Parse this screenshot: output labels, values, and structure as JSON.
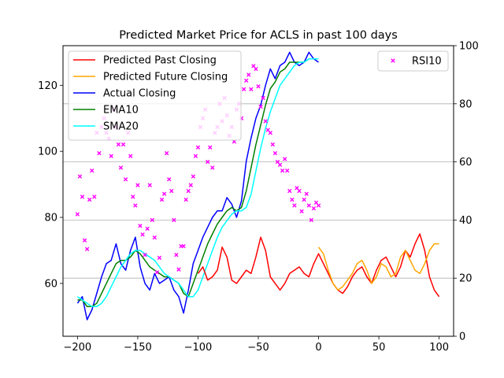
{
  "chart_data": {
    "type": "line",
    "title": "Predicted Market Price for ACLS in past 100 days",
    "xlabel": "",
    "ylabel": "",
    "xlim": [
      -212,
      112
    ],
    "ylim": [
      44,
      132
    ],
    "y2lim": [
      0,
      100
    ],
    "xticks": [
      -200,
      -150,
      -100,
      -50,
      0,
      50,
      100
    ],
    "yticks": [
      60,
      80,
      100,
      120
    ],
    "y2ticks": [
      0,
      20,
      40,
      60,
      80,
      100
    ],
    "grid": "right-axis horizontal lines",
    "colors": {
      "predicted_past": "#ff0000",
      "predicted_future": "#ffa500",
      "actual": "#0000ff",
      "ema": "#008000",
      "sma": "#00ffff",
      "rsi": "#ff00ff"
    },
    "legend_left": {
      "placement": "upper-left",
      "entries": [
        {
          "key": "predicted_past",
          "label": "Predicted Past Closing"
        },
        {
          "key": "predicted_future",
          "label": "Predicted Future Closing"
        },
        {
          "key": "actual",
          "label": "Actual Closing"
        },
        {
          "key": "ema",
          "label": "EMA10"
        },
        {
          "key": "sma",
          "label": "SMA20"
        }
      ]
    },
    "legend_right": {
      "placement": "upper-right",
      "entries": [
        {
          "key": "rsi",
          "label": "RSI10"
        }
      ]
    },
    "series": [
      {
        "key": "actual",
        "name": "Actual Closing",
        "axis": "left",
        "x": [
          -200,
          -196,
          -192,
          -188,
          -184,
          -180,
          -176,
          -172,
          -168,
          -164,
          -160,
          -156,
          -152,
          -148,
          -144,
          -140,
          -136,
          -132,
          -128,
          -124,
          -120,
          -116,
          -112,
          -108,
          -104,
          -100,
          -96,
          -92,
          -88,
          -84,
          -80,
          -76,
          -72,
          -68,
          -64,
          -60,
          -56,
          -52,
          -48,
          -44,
          -40,
          -36,
          -32,
          -28,
          -24,
          -20,
          -16,
          -12,
          -8,
          -4,
          0
        ],
        "values": [
          54,
          56,
          49,
          52,
          57,
          62,
          66,
          67,
          72,
          66,
          64,
          70,
          74,
          65,
          60,
          58,
          63,
          60,
          61,
          62,
          58,
          56,
          51,
          58,
          66,
          70,
          74,
          77,
          80,
          82,
          82,
          86,
          84,
          80,
          85,
          97,
          104,
          110,
          114,
          120,
          125,
          122,
          126,
          127,
          130,
          127,
          126,
          127,
          130,
          128,
          127
        ]
      },
      {
        "key": "ema",
        "name": "EMA10",
        "axis": "left",
        "x": [
          -200,
          -196,
          -192,
          -188,
          -184,
          -180,
          -176,
          -172,
          -168,
          -164,
          -160,
          -156,
          -152,
          -148,
          -144,
          -140,
          -136,
          -132,
          -128,
          -124,
          -120,
          -116,
          -112,
          -108,
          -104,
          -100,
          -96,
          -92,
          -88,
          -84,
          -80,
          -76,
          -72,
          -68,
          -64,
          -60,
          -56,
          -52,
          -48,
          -44,
          -40,
          -36,
          -32,
          -28,
          -24,
          -20,
          -16,
          -12,
          -8,
          -4,
          0
        ],
        "values": [
          55,
          55,
          53,
          53,
          54,
          57,
          60,
          63,
          66,
          67,
          67,
          68,
          70,
          69,
          67,
          65,
          64,
          63,
          62,
          62,
          61,
          60,
          57,
          56,
          60,
          64,
          68,
          72,
          75,
          78,
          80,
          82,
          83,
          82,
          83,
          88,
          95,
          102,
          108,
          114,
          119,
          121,
          124,
          125,
          127,
          127,
          127,
          127,
          128,
          128,
          128
        ]
      },
      {
        "key": "sma",
        "name": "SMA20",
        "axis": "left",
        "x": [
          -200,
          -196,
          -192,
          -188,
          -184,
          -180,
          -176,
          -172,
          -168,
          -164,
          -160,
          -156,
          -152,
          -148,
          -144,
          -140,
          -136,
          -132,
          -128,
          -124,
          -120,
          -116,
          -112,
          -108,
          -104,
          -100,
          -96,
          -92,
          -88,
          -84,
          -80,
          -76,
          -72,
          -68,
          -64,
          -60,
          -56,
          -52,
          -48,
          -44,
          -40,
          -36,
          -32,
          -28,
          -24,
          -20,
          -16,
          -12,
          -8,
          -4,
          0
        ],
        "values": [
          56,
          55,
          54,
          53,
          53,
          54,
          56,
          59,
          62,
          65,
          67,
          69,
          70,
          70,
          69,
          68,
          67,
          65,
          63,
          62,
          61,
          60,
          58,
          56,
          56,
          58,
          62,
          66,
          70,
          74,
          77,
          79,
          81,
          82,
          82,
          83,
          87,
          94,
          101,
          107,
          112,
          116,
          120,
          122,
          124,
          126,
          127,
          127,
          128,
          128,
          128
        ]
      },
      {
        "key": "predicted_past",
        "name": "Predicted Past Closing",
        "axis": "left",
        "x": [
          -100,
          -96,
          -92,
          -88,
          -84,
          -80,
          -76,
          -72,
          -68,
          -64,
          -60,
          -56,
          -52,
          -48,
          -44,
          -40,
          -36,
          -32,
          -28,
          -24,
          -20,
          -16,
          -12,
          -8,
          -4,
          0,
          4,
          8,
          12,
          16,
          20,
          24,
          28,
          32,
          36,
          40,
          44,
          48,
          52,
          56,
          60,
          64,
          68,
          72,
          76,
          80,
          84,
          88,
          92,
          96,
          100
        ],
        "values": [
          63,
          65,
          61,
          62,
          64,
          71,
          68,
          61,
          60,
          62,
          64,
          63,
          68,
          74,
          70,
          62,
          60,
          58,
          60,
          63,
          64,
          65,
          63,
          62,
          66,
          69,
          66,
          63,
          60,
          58,
          57,
          59,
          62,
          64,
          65,
          62,
          60,
          64,
          67,
          68,
          65,
          62,
          65,
          70,
          68,
          72,
          75,
          70,
          62,
          58,
          56
        ]
      },
      {
        "key": "predicted_future",
        "name": "Predicted Future Closing",
        "axis": "left",
        "x": [
          0,
          4,
          8,
          12,
          16,
          20,
          24,
          28,
          32,
          36,
          40,
          44,
          48,
          52,
          56,
          60,
          64,
          68,
          72,
          76,
          80,
          84,
          88,
          92,
          96,
          100
        ],
        "values": [
          71,
          69,
          64,
          60,
          58,
          59,
          61,
          63,
          66,
          67,
          64,
          60,
          62,
          66,
          65,
          62,
          63,
          68,
          70,
          67,
          64,
          63,
          66,
          70,
          72,
          72
        ]
      },
      {
        "key": "rsi",
        "name": "RSI10",
        "axis": "right",
        "x": [
          -200,
          -198,
          -196,
          -194,
          -192,
          -190,
          -188,
          -186,
          -184,
          -182,
          -180,
          -178,
          -176,
          -174,
          -172,
          -170,
          -168,
          -166,
          -164,
          -162,
          -160,
          -158,
          -156,
          -154,
          -152,
          -150,
          -148,
          -146,
          -144,
          -142,
          -140,
          -138,
          -136,
          -134,
          -132,
          -130,
          -128,
          -126,
          -124,
          -122,
          -120,
          -118,
          -116,
          -114,
          -112,
          -110,
          -108,
          -106,
          -104,
          -102,
          -100,
          -98,
          -96,
          -94,
          -92,
          -90,
          -88,
          -86,
          -84,
          -82,
          -80,
          -78,
          -76,
          -74,
          -72,
          -70,
          -68,
          -66,
          -64,
          -62,
          -60,
          -58,
          -56,
          -54,
          -52,
          -50,
          -48,
          -46,
          -44,
          -42,
          -40,
          -38,
          -36,
          -34,
          -32,
          -30,
          -28,
          -26,
          -24,
          -22,
          -20,
          -18,
          -16,
          -14,
          -12,
          -10,
          -8,
          -6,
          -4,
          -2,
          0
        ],
        "values": [
          42,
          55,
          48,
          33,
          30,
          47,
          57,
          48,
          70,
          63,
          72,
          75,
          70,
          68,
          62,
          78,
          72,
          66,
          58,
          66,
          54,
          70,
          62,
          48,
          45,
          52,
          38,
          35,
          28,
          37,
          52,
          40,
          34,
          22,
          27,
          47,
          49,
          63,
          54,
          50,
          40,
          28,
          23,
          31,
          31,
          47,
          50,
          52,
          55,
          62,
          65,
          72,
          75,
          78,
          60,
          65,
          58,
          70,
          72,
          80,
          74,
          82,
          76,
          69,
          72,
          67,
          78,
          80,
          75,
          85,
          88,
          90,
          85,
          93,
          92,
          86,
          79,
          82,
          74,
          71,
          70,
          66,
          63,
          60,
          59,
          57,
          61,
          57,
          50,
          47,
          45,
          51,
          50,
          43,
          47,
          49,
          45,
          40,
          44,
          46,
          45
        ]
      }
    ]
  }
}
